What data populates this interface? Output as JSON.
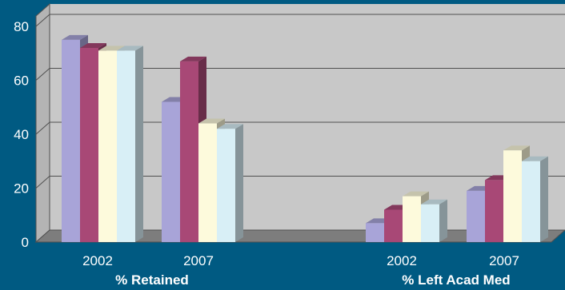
{
  "chart_data": {
    "type": "bar",
    "groups": [
      {
        "label": "% Retained",
        "categories": [
          "2002",
          "2007"
        ]
      },
      {
        "label": "% Left Acad Med",
        "categories": [
          "2002",
          "2007"
        ]
      }
    ],
    "series": [
      {
        "color": "#a8a4d8",
        "values": [
          75,
          52,
          7,
          19
        ]
      },
      {
        "color": "#a84876",
        "values": [
          72,
          67,
          12,
          23
        ]
      },
      {
        "color": "#fdfadc",
        "values": [
          71,
          44,
          17,
          34
        ]
      },
      {
        "color": "#d8eff6",
        "values": [
          71,
          42,
          14,
          30
        ]
      }
    ],
    "y_ticks": [
      "0",
      "20",
      "40",
      "60",
      "80"
    ],
    "ylim": [
      0,
      80
    ],
    "grid": true,
    "colors": {
      "background": "#005a82",
      "plot_area": "#c8c8c8",
      "floor": "#7d7d7d",
      "gridline": "#505050"
    }
  }
}
